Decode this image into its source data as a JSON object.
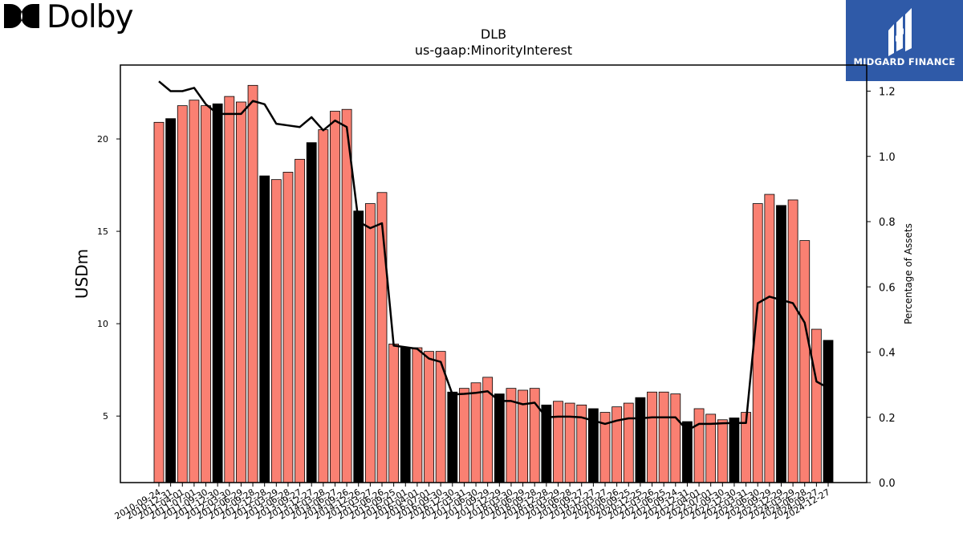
{
  "logos": {
    "left_name": "Dolby",
    "right_name": "MIDGARD FINANCE",
    "brand_color": "#2f5aa8"
  },
  "chart_data": {
    "type": "bar",
    "title": "DLB",
    "subtitle": "us-gaap:MinorityInterest",
    "ylabel": "USDm",
    "y2label": "Percentage of Assets",
    "ylim": [
      1.4,
      24.0
    ],
    "y2lim": [
      0.0,
      1.28
    ],
    "yticks": [
      5,
      10,
      15,
      20
    ],
    "y2ticks": [
      "0.0",
      "0.2",
      "0.4",
      "0.6",
      "0.8",
      "1.0",
      "1.2"
    ],
    "bar_color": "#fa8072",
    "highlight_color": "#000000",
    "line_color": "#000000",
    "categories": [
      "2010-09-24",
      "2010-12-31",
      "2011-04-01",
      "2011-07-01",
      "2011-09-30",
      "2011-12-30",
      "2012-03-30",
      "2012-06-29",
      "2012-09-28",
      "2012-12-28",
      "2013-03-29",
      "2013-06-28",
      "2013-09-27",
      "2013-12-27",
      "2014-03-28",
      "2014-06-27",
      "2014-09-26",
      "2014-12-26",
      "2015-03-27",
      "2015-06-26",
      "2015-09-25",
      "2016-01-01",
      "2016-04-01",
      "2016-07-01",
      "2016-09-30",
      "2016-12-30",
      "2017-03-31",
      "2017-06-30",
      "2017-09-29",
      "2017-12-29",
      "2018-03-30",
      "2018-06-29",
      "2018-09-28",
      "2018-12-28",
      "2019-03-29",
      "2019-06-28",
      "2019-09-27",
      "2019-12-27",
      "2020-03-27",
      "2020-06-26",
      "2020-09-25",
      "2020-12-25",
      "2021-03-26",
      "2021-06-25",
      "2021-09-24",
      "2021-12-31",
      "2022-04-01",
      "2022-07-01",
      "2022-09-30",
      "2022-12-30",
      "2023-03-31",
      "2023-06-30",
      "2023-09-29",
      "2023-12-29",
      "2024-03-29",
      "2024-06-28",
      "2024-09-27",
      "2024-12-27"
    ],
    "values": [
      20.9,
      21.1,
      21.8,
      22.1,
      21.8,
      21.9,
      22.3,
      22.0,
      22.9,
      18.0,
      17.8,
      18.2,
      18.9,
      19.8,
      20.5,
      21.5,
      21.6,
      16.1,
      16.5,
      17.1,
      8.9,
      8.7,
      8.7,
      8.5,
      8.5,
      6.3,
      6.5,
      6.8,
      7.1,
      6.2,
      6.5,
      6.4,
      6.5,
      5.6,
      5.8,
      5.7,
      5.6,
      5.4,
      5.2,
      5.5,
      5.7,
      6.0,
      6.3,
      6.3,
      6.2,
      4.7,
      5.4,
      5.1,
      4.8,
      4.9,
      5.2,
      16.5,
      17.0,
      16.4,
      16.7,
      14.5,
      9.7,
      9.1
    ],
    "highlight": [
      false,
      true,
      false,
      false,
      false,
      true,
      false,
      false,
      false,
      true,
      false,
      false,
      false,
      true,
      false,
      false,
      false,
      true,
      false,
      false,
      false,
      true,
      false,
      false,
      false,
      true,
      false,
      false,
      false,
      true,
      false,
      false,
      false,
      true,
      false,
      false,
      false,
      true,
      false,
      false,
      false,
      true,
      false,
      false,
      false,
      true,
      false,
      false,
      false,
      true,
      false,
      false,
      false,
      true,
      false,
      false,
      false,
      true
    ],
    "pct_assets": [
      1.23,
      1.2,
      1.2,
      1.21,
      1.16,
      1.13,
      1.13,
      1.13,
      1.17,
      1.16,
      1.1,
      1.095,
      1.09,
      1.12,
      1.08,
      1.11,
      1.09,
      0.8,
      0.78,
      0.795,
      0.42,
      0.415,
      0.41,
      0.38,
      0.37,
      0.27,
      0.272,
      0.275,
      0.28,
      0.25,
      0.25,
      0.24,
      0.245,
      0.2,
      0.202,
      0.202,
      0.2,
      0.19,
      0.18,
      0.19,
      0.197,
      0.197,
      0.2,
      0.2,
      0.2,
      0.16,
      0.18,
      0.18,
      0.182,
      0.183,
      0.183,
      0.55,
      0.57,
      0.56,
      0.55,
      0.49,
      0.31,
      0.29
    ]
  }
}
